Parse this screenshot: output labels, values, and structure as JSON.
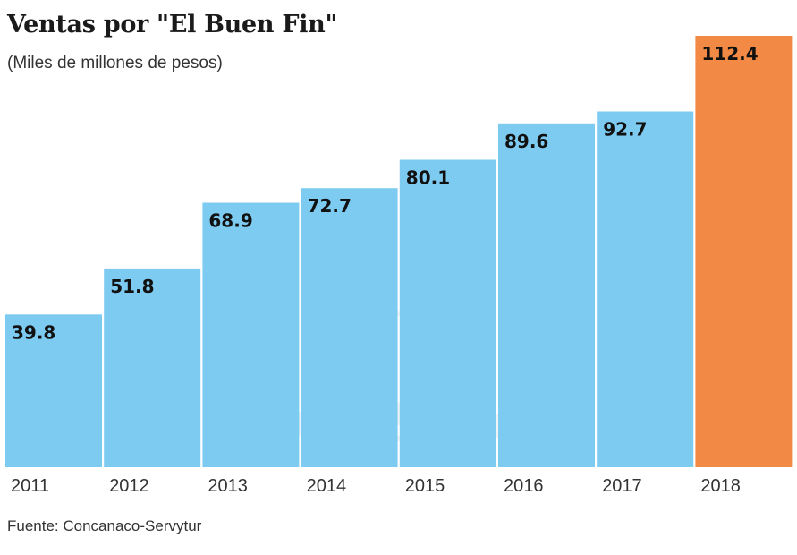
{
  "chart_data": {
    "type": "bar",
    "title": "Ventas por \"El Buen Fin\"",
    "subtitle": "(Miles de millones de pesos)",
    "source": "Fuente: Concanaco-Servytur",
    "categories": [
      "2011",
      "2012",
      "2013",
      "2014",
      "2015",
      "2016",
      "2017",
      "2018"
    ],
    "values": [
      39.8,
      51.8,
      68.9,
      72.7,
      80.1,
      89.6,
      92.7,
      112.4
    ],
    "value_labels": [
      "39.8",
      "51.8",
      "68.9",
      "72.7",
      "80.1",
      "89.6",
      "92.7",
      "112.4"
    ],
    "xlabel": "",
    "ylabel": "",
    "ylim": [
      0,
      112.4
    ],
    "grid": false,
    "colors": {
      "default": "#7ecbf2",
      "highlight": "#f28a45"
    },
    "highlight_index": 7
  }
}
